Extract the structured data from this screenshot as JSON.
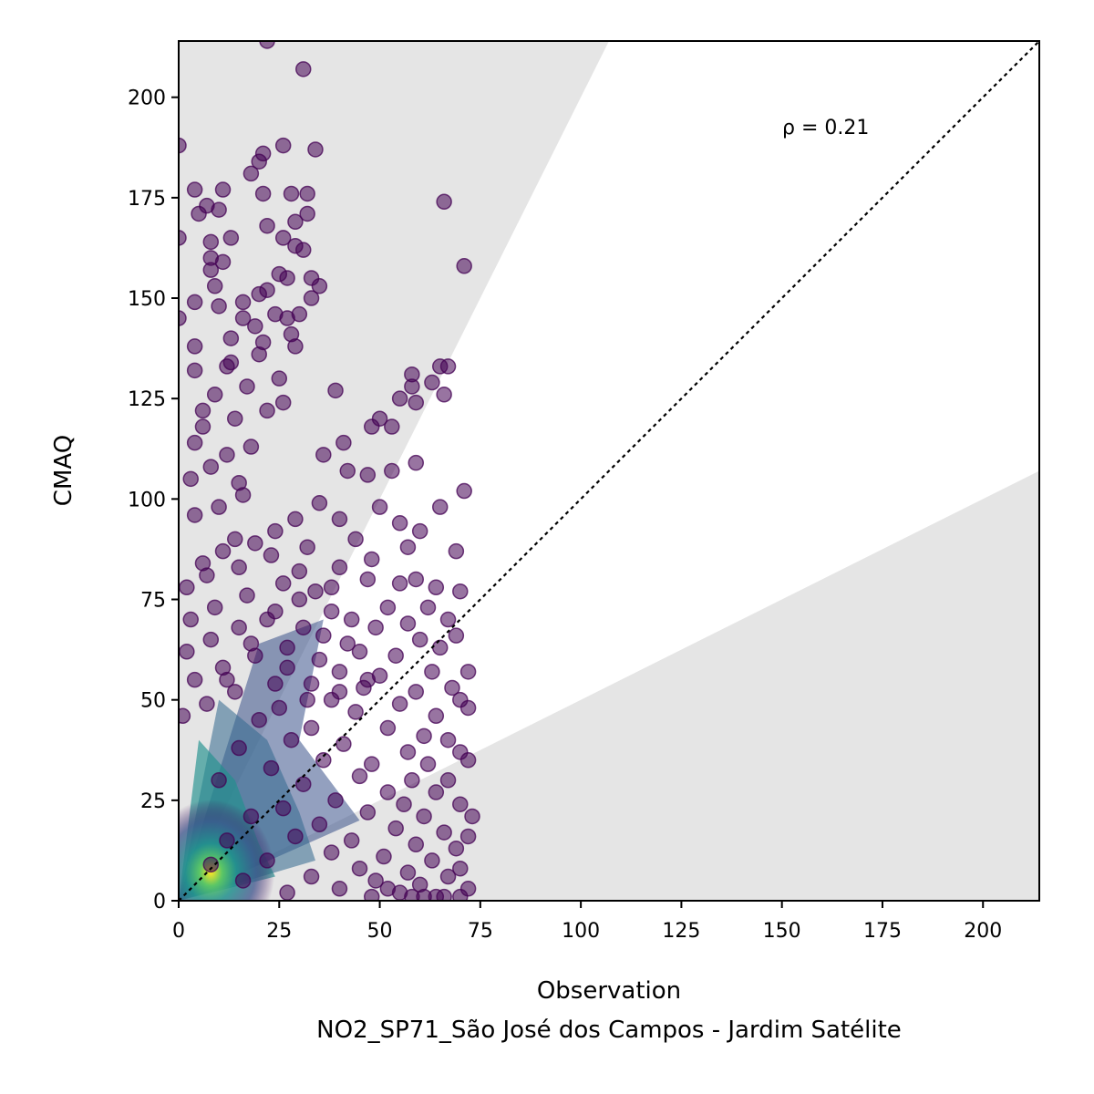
{
  "chart_data": {
    "type": "scatter",
    "title": "",
    "xlabel": "Observation",
    "ylabel": "CMAQ",
    "subtitle": "NO2_SP71_São José dos Campos - Jardim Satélite",
    "annotation": "ρ = 0.21",
    "xlim": [
      0,
      214
    ],
    "ylim": [
      0,
      214
    ],
    "xticks": [
      0,
      25,
      50,
      75,
      100,
      125,
      150,
      175,
      200
    ],
    "yticks": [
      0,
      25,
      50,
      75,
      100,
      125,
      150,
      175,
      200
    ],
    "grid": false,
    "legend": "none",
    "reference_line": {
      "type": "1:1",
      "style": "dotted",
      "color": "#000000"
    },
    "shaded_regions": [
      {
        "description": "above 2:1 line",
        "slope_low": 2,
        "color": "#e5e5e5"
      },
      {
        "description": "below 1:2 line",
        "slope_high": 0.5,
        "color": "#e5e5e5"
      }
    ],
    "point_color": "#440154",
    "density_colormap": [
      "#440154",
      "#3b528b",
      "#21908d",
      "#5dc963",
      "#fde725"
    ],
    "point_count_note": "dense cloud concentrated at low observation values",
    "points": [
      [
        22,
        214
      ],
      [
        31,
        207
      ],
      [
        0,
        188
      ],
      [
        26,
        188
      ],
      [
        34,
        187
      ],
      [
        21,
        186
      ],
      [
        20,
        184
      ],
      [
        18,
        181
      ],
      [
        4,
        177
      ],
      [
        11,
        177
      ],
      [
        28,
        176
      ],
      [
        32,
        176
      ],
      [
        21,
        176
      ],
      [
        66,
        174
      ],
      [
        7,
        173
      ],
      [
        5,
        171
      ],
      [
        10,
        172
      ],
      [
        32,
        171
      ],
      [
        29,
        169
      ],
      [
        22,
        168
      ],
      [
        13,
        165
      ],
      [
        0,
        165
      ],
      [
        26,
        165
      ],
      [
        8,
        164
      ],
      [
        31,
        162
      ],
      [
        29,
        163
      ],
      [
        8,
        160
      ],
      [
        11,
        159
      ],
      [
        71,
        158
      ],
      [
        8,
        157
      ],
      [
        25,
        156
      ],
      [
        33,
        155
      ],
      [
        27,
        155
      ],
      [
        9,
        153
      ],
      [
        35,
        153
      ],
      [
        22,
        152
      ],
      [
        20,
        151
      ],
      [
        4,
        149
      ],
      [
        33,
        150
      ],
      [
        16,
        149
      ],
      [
        10,
        148
      ],
      [
        0,
        145
      ],
      [
        27,
        145
      ],
      [
        24,
        146
      ],
      [
        30,
        146
      ],
      [
        19,
        143
      ],
      [
        13,
        140
      ],
      [
        21,
        139
      ],
      [
        4,
        138
      ],
      [
        29,
        138
      ],
      [
        65,
        133
      ],
      [
        67,
        133
      ],
      [
        4,
        132
      ],
      [
        12,
        133
      ],
      [
        58,
        131
      ],
      [
        63,
        129
      ],
      [
        58,
        128
      ],
      [
        39,
        127
      ],
      [
        66,
        126
      ],
      [
        55,
        125
      ],
      [
        59,
        124
      ],
      [
        26,
        124
      ],
      [
        6,
        122
      ],
      [
        50,
        120
      ],
      [
        48,
        118
      ],
      [
        53,
        118
      ],
      [
        41,
        114
      ],
      [
        4,
        114
      ],
      [
        36,
        111
      ],
      [
        59,
        109
      ],
      [
        53,
        107
      ],
      [
        42,
        107
      ],
      [
        47,
        106
      ],
      [
        15,
        104
      ],
      [
        71,
        102
      ],
      [
        65,
        98
      ],
      [
        50,
        98
      ],
      [
        35,
        99
      ],
      [
        40,
        95
      ],
      [
        55,
        94
      ],
      [
        60,
        92
      ],
      [
        44,
        90
      ],
      [
        57,
        88
      ],
      [
        69,
        87
      ],
      [
        48,
        85
      ],
      [
        32,
        88
      ],
      [
        14,
        90
      ],
      [
        40,
        83
      ],
      [
        47,
        80
      ],
      [
        55,
        79
      ],
      [
        59,
        80
      ],
      [
        38,
        78
      ],
      [
        64,
        78
      ],
      [
        70,
        77
      ],
      [
        30,
        75
      ],
      [
        52,
        73
      ],
      [
        62,
        73
      ],
      [
        24,
        72
      ],
      [
        43,
        70
      ],
      [
        57,
        69
      ],
      [
        67,
        70
      ],
      [
        49,
        68
      ],
      [
        36,
        66
      ],
      [
        60,
        65
      ],
      [
        69,
        66
      ],
      [
        18,
        64
      ],
      [
        45,
        62
      ],
      [
        54,
        61
      ],
      [
        65,
        63
      ],
      [
        27,
        58
      ],
      [
        40,
        57
      ],
      [
        63,
        57
      ],
      [
        72,
        57
      ],
      [
        50,
        56
      ],
      [
        33,
        54
      ],
      [
        46,
        53
      ],
      [
        59,
        52
      ],
      [
        68,
        53
      ],
      [
        12,
        55
      ],
      [
        38,
        50
      ],
      [
        55,
        49
      ],
      [
        70,
        50
      ],
      [
        25,
        48
      ],
      [
        44,
        47
      ],
      [
        64,
        46
      ],
      [
        72,
        48
      ],
      [
        20,
        45
      ],
      [
        33,
        43
      ],
      [
        52,
        43
      ],
      [
        61,
        41
      ],
      [
        67,
        40
      ],
      [
        28,
        40
      ],
      [
        41,
        39
      ],
      [
        57,
        37
      ],
      [
        70,
        37
      ],
      [
        15,
        38
      ],
      [
        36,
        35
      ],
      [
        48,
        34
      ],
      [
        62,
        34
      ],
      [
        72,
        35
      ],
      [
        23,
        33
      ],
      [
        45,
        31
      ],
      [
        58,
        30
      ],
      [
        67,
        30
      ],
      [
        31,
        29
      ],
      [
        52,
        27
      ],
      [
        64,
        27
      ],
      [
        10,
        30
      ],
      [
        39,
        25
      ],
      [
        56,
        24
      ],
      [
        70,
        24
      ],
      [
        26,
        23
      ],
      [
        47,
        22
      ],
      [
        61,
        21
      ],
      [
        73,
        21
      ],
      [
        18,
        21
      ],
      [
        35,
        19
      ],
      [
        54,
        18
      ],
      [
        66,
        17
      ],
      [
        72,
        16
      ],
      [
        29,
        16
      ],
      [
        43,
        15
      ],
      [
        59,
        14
      ],
      [
        69,
        13
      ],
      [
        12,
        15
      ],
      [
        38,
        12
      ],
      [
        51,
        11
      ],
      [
        63,
        10
      ],
      [
        70,
        8
      ],
      [
        22,
        10
      ],
      [
        45,
        8
      ],
      [
        57,
        7
      ],
      [
        67,
        6
      ],
      [
        8,
        9
      ],
      [
        33,
        6
      ],
      [
        49,
        5
      ],
      [
        60,
        4
      ],
      [
        72,
        3
      ],
      [
        16,
        5
      ],
      [
        40,
        3
      ],
      [
        55,
        2
      ],
      [
        64,
        1
      ],
      [
        70,
        1
      ],
      [
        27,
        2
      ],
      [
        61,
        1
      ],
      [
        66,
        1
      ],
      [
        58,
        1
      ],
      [
        48,
        1
      ],
      [
        52,
        3
      ],
      [
        4,
        96
      ],
      [
        10,
        98
      ],
      [
        16,
        101
      ],
      [
        3,
        105
      ],
      [
        8,
        108
      ],
      [
        12,
        111
      ],
      [
        18,
        113
      ],
      [
        6,
        118
      ],
      [
        14,
        120
      ],
      [
        22,
        122
      ],
      [
        9,
        126
      ],
      [
        17,
        128
      ],
      [
        25,
        130
      ],
      [
        13,
        134
      ],
      [
        20,
        136
      ],
      [
        28,
        141
      ],
      [
        16,
        145
      ],
      [
        6,
        84
      ],
      [
        11,
        87
      ],
      [
        19,
        89
      ],
      [
        24,
        92
      ],
      [
        29,
        95
      ],
      [
        2,
        78
      ],
      [
        7,
        81
      ],
      [
        15,
        83
      ],
      [
        23,
        86
      ],
      [
        30,
        82
      ],
      [
        3,
        70
      ],
      [
        9,
        73
      ],
      [
        17,
        76
      ],
      [
        26,
        79
      ],
      [
        34,
        77
      ],
      [
        2,
        62
      ],
      [
        8,
        65
      ],
      [
        15,
        68
      ],
      [
        22,
        70
      ],
      [
        31,
        68
      ],
      [
        38,
        72
      ],
      [
        4,
        55
      ],
      [
        11,
        58
      ],
      [
        19,
        61
      ],
      [
        27,
        63
      ],
      [
        35,
        60
      ],
      [
        42,
        64
      ],
      [
        1,
        46
      ],
      [
        7,
        49
      ],
      [
        14,
        52
      ],
      [
        24,
        54
      ],
      [
        32,
        50
      ],
      [
        40,
        52
      ],
      [
        47,
        55
      ]
    ]
  }
}
